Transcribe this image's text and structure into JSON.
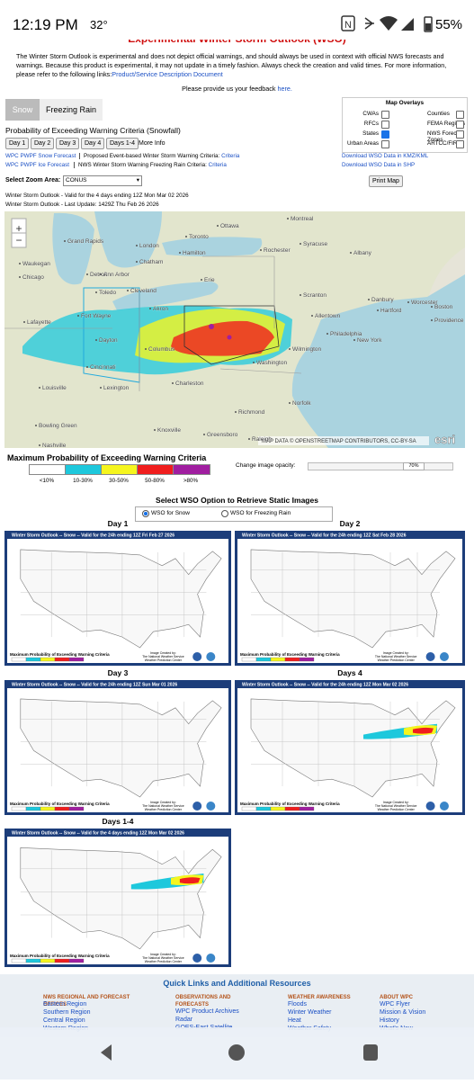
{
  "status_bar": {
    "time": "12:19 PM",
    "temp": "32°",
    "battery": "55%"
  },
  "header": {
    "title": "Experimental Winter Storm Outlook (WSO)",
    "intro": "The Winter Storm Outlook is experimental and does not depict official warnings, and should always be used in context with official NWS forecasts and warnings. Because this product is experimental, it may not update in a timely fashion. Always check the creation and valid times. For more information, please refer to the following links:",
    "intro_link": "Product/Service Description Document",
    "feedback": "Please provide us your feedback",
    "feedback_link": "here."
  },
  "tabs": [
    "Snow",
    "Freezing Rain"
  ],
  "overlays": {
    "title": "Map Overlays",
    "items": [
      {
        "label": "CWAs",
        "checked": false
      },
      {
        "label": "Counties",
        "checked": false
      },
      {
        "label": "RFCs",
        "checked": false
      },
      {
        "label": "FEMA Regions",
        "checked": false
      },
      {
        "label": "States",
        "checked": true
      },
      {
        "label": "NWS Forecast Zones",
        "checked": false
      },
      {
        "label": "Urban Areas",
        "checked": false
      },
      {
        "label": "ARTCC/FIR",
        "checked": false
      }
    ]
  },
  "product_title": "Probability of Exceeding Warning Criteria (Snowfall)",
  "day_buttons": [
    "Day 1",
    "Day 2",
    "Day 3",
    "Day 4",
    "Days 1-4",
    "More Info"
  ],
  "links": {
    "rows": [
      {
        "product": "WPC PWPF Snow Forecast",
        "criteria_text": "Proposed Event-based Winter Storm Warning Criteria:",
        "criteria_link": "Criteria"
      },
      {
        "product": "WPC PWPF Ice Forecast",
        "criteria_text": "NWS Winter Storm Warning Freezing Rain Criteria:",
        "criteria_link": "Criteria"
      }
    ],
    "downloads": [
      "Download WSO Data in KMZ/KML",
      "Download WSO Data in SHP"
    ]
  },
  "zoom": {
    "label": "Select Zoom Area:",
    "selected": "CONUS",
    "print": "Print Map"
  },
  "map": {
    "valid": [
      "Winter Storm Outlook - Valid for the 4 days ending 12Z Mon Mar 02 2026",
      "Winter Storm Outlook - Last Update: 1429Z Thu Feb 26 2026"
    ],
    "cities": [
      "Ottawa",
      "Montreal",
      "Toronto",
      "Hamilton",
      "Rochester",
      "Syracuse",
      "Albany",
      "Boston",
      "Worcester",
      "Providence",
      "Hartford",
      "New York",
      "Scranton",
      "Danbury",
      "Allentown",
      "Philadelphia",
      "Wilmington",
      "Cleveland",
      "Akron",
      "Erie",
      "Detroit",
      "Toledo",
      "Chicago",
      "Waukegan",
      "Fort Wayne",
      "Lafayette",
      "Dayton",
      "Columbus",
      "Cincinnati",
      "Louisville",
      "Lexington",
      "Charleston",
      "Washington",
      "Richmond",
      "Norfolk",
      "Nashville",
      "Bowling Green",
      "Knoxville",
      "Greensboro",
      "Raleigh",
      "Grand Rapids",
      "Ann Arbor",
      "Chatham",
      "London"
    ],
    "attribution": "MAP DATA © OPENSTREETMAP CONTRIBUTORS, CC-BY-SA",
    "logo": "esri"
  },
  "legend": {
    "title": "Maximum Probability of Exceeding Warning Criteria",
    "items": [
      {
        "label": "<10%",
        "color": "#ffffff"
      },
      {
        "label": "10-30%",
        "color": "#1ec8dc"
      },
      {
        "label": "30-50%",
        "color": "#f5f51e"
      },
      {
        "label": "50-80%",
        "color": "#f01e1e"
      },
      {
        "label": ">80%",
        "color": "#a01ea0"
      }
    ]
  },
  "opacity": {
    "label": "Change image opacity:",
    "value": "70%"
  },
  "static": {
    "title": "Select WSO Option to Retrieve Static Images",
    "options": [
      {
        "label": "WSO for Snow",
        "checked": true
      },
      {
        "label": "WSO for Freezing Rain",
        "checked": false
      }
    ],
    "panels": [
      {
        "label": "Day 1",
        "image_title": "Winter Storm Outlook -- Snow -- Valid for the 24h ending 12Z Fri Feb 27 2026"
      },
      {
        "label": "Day 2",
        "image_title": "Winter Storm Outlook -- Snow -- Valid for the 24h ending 12Z Sat Feb 28 2026"
      },
      {
        "label": "Day 3",
        "image_title": "Winter Storm Outlook -- Snow -- Valid for the 24h ending 12Z Sun Mar 01 2026"
      },
      {
        "label": "Days 4",
        "image_title": "Winter Storm Outlook -- Snow -- Valid for the 24h ending 12Z Mon Mar 02 2026"
      },
      {
        "label": "Days 1-4",
        "image_title": "Winter Storm Outlook -- Snow -- Valid for the 4 days ending 12Z Mon Mar 02 2026"
      }
    ],
    "image_legend": "Maximum Probability of Exceeding Warning Criteria",
    "image_credit": [
      "Image Created by:",
      "The National Weather Service",
      "Weather Prediction Center"
    ]
  },
  "footer": {
    "title": "Quick Links and Additional Resources",
    "columns": [
      {
        "heading": "NWS REGIONAL AND FORECAST OFFICES",
        "links": [
          "Eastern Region",
          "Southern Region",
          "Central Region",
          "Western Region"
        ]
      },
      {
        "heading": "OBSERVATIONS AND FORECASTS",
        "links": [
          "WPC Product Archives",
          "Radar",
          "GOES-East Satellite"
        ]
      },
      {
        "heading": "WEATHER AWARENESS",
        "links": [
          "Floods",
          "Winter Weather",
          "Heat",
          "Weather Safety"
        ]
      },
      {
        "heading": "ABOUT WPC",
        "links": [
          "WPC Flyer",
          "Mission & Vision",
          "History",
          "What's New"
        ]
      }
    ]
  }
}
